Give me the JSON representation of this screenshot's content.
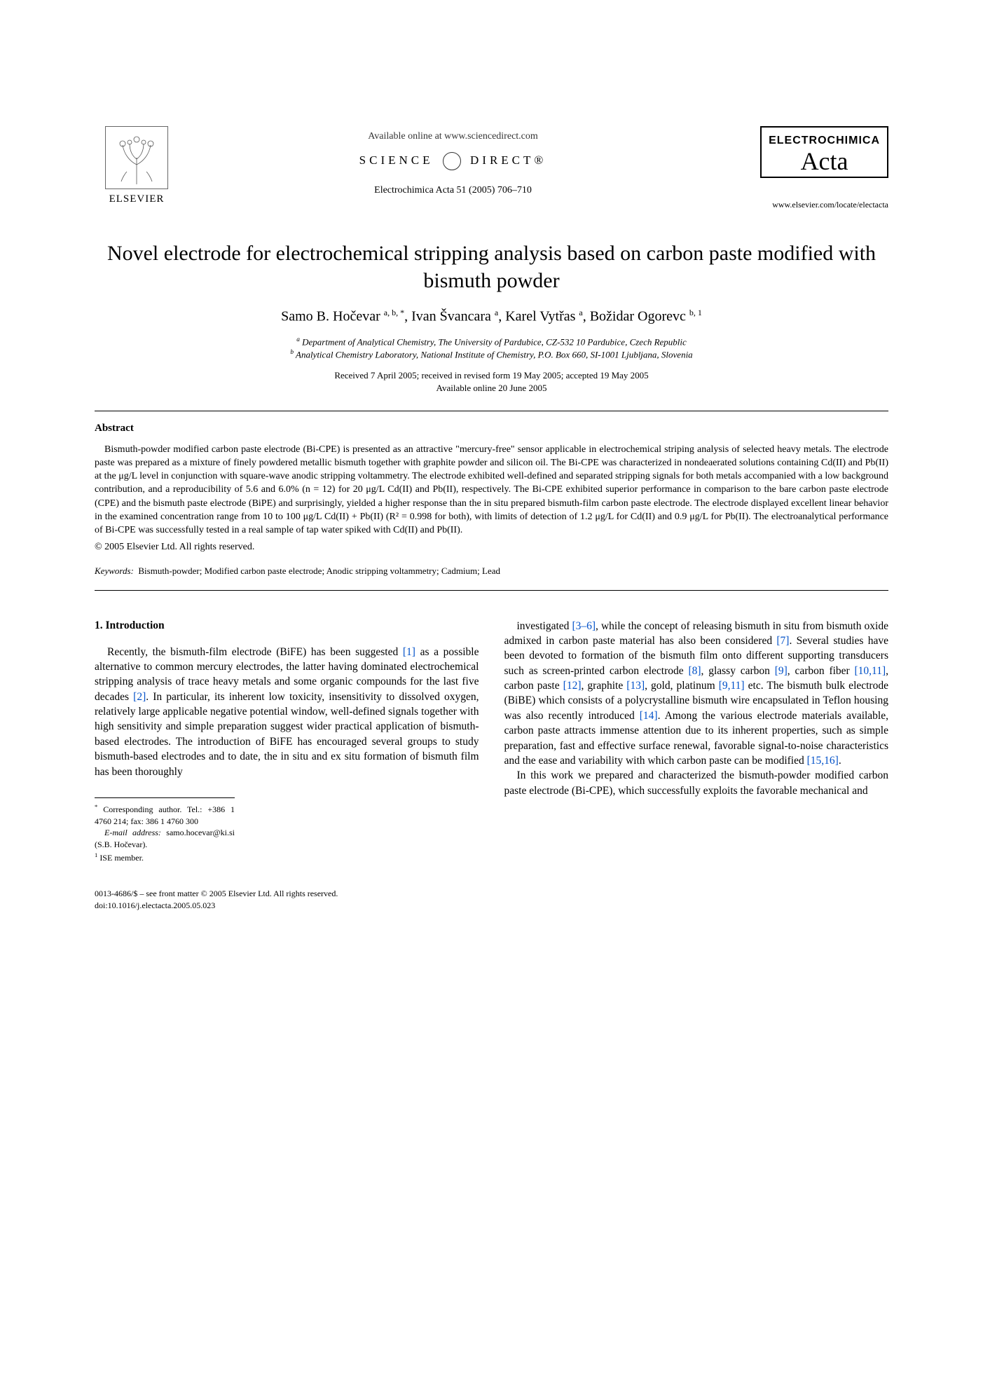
{
  "header": {
    "publisher": "ELSEVIER",
    "available_online": "Available online at www.sciencedirect.com",
    "sciencedirect_left": "SCIENCE",
    "sciencedirect_right": "DIRECT®",
    "journal_reference": "Electrochimica Acta 51 (2005) 706–710",
    "brand_top": "ELECTROCHIMICA",
    "brand_script": "Acta",
    "brand_url": "www.elsevier.com/locate/electacta"
  },
  "title": "Novel electrode for electrochemical stripping analysis based on carbon paste modified with bismuth powder",
  "authors_html": "Samo B. Hočevar <sup>a, b, *</sup>, Ivan Švancara <sup>a</sup>, Karel Vytřas <sup>a</sup>, Božidar Ogorevc <sup>b, 1</sup>",
  "affiliations": {
    "a": "Department of Analytical Chemistry, The University of Pardubice, CZ-532 10 Pardubice, Czech Republic",
    "b": "Analytical Chemistry Laboratory, National Institute of Chemistry, P.O. Box 660, SI-1001 Ljubljana, Slovenia"
  },
  "dates_line1": "Received 7 April 2005; received in revised form 19 May 2005; accepted 19 May 2005",
  "dates_line2": "Available online 20 June 2005",
  "abstract_heading": "Abstract",
  "abstract_body": "Bismuth-powder modified carbon paste electrode (Bi-CPE) is presented as an attractive \"mercury-free\" sensor applicable in electrochemical striping analysis of selected heavy metals. The electrode paste was prepared as a mixture of finely powdered metallic bismuth together with graphite powder and silicon oil. The Bi-CPE was characterized in nondeaerated solutions containing Cd(II) and Pb(II) at the μg/L level in conjunction with square-wave anodic stripping voltammetry. The electrode exhibited well-defined and separated stripping signals for both metals accompanied with a low background contribution, and a reproducibility of 5.6 and 6.0% (n = 12) for 20 μg/L Cd(II) and Pb(II), respectively. The Bi-CPE exhibited superior performance in comparison to the bare carbon paste electrode (CPE) and the bismuth paste electrode (BiPE) and surprisingly, yielded a higher response than the in situ prepared bismuth-film carbon paste electrode. The electrode displayed excellent linear behavior in the examined concentration range from 10 to 100 μg/L Cd(II) + Pb(II) (R² = 0.998 for both), with limits of detection of 1.2 μg/L for Cd(II) and 0.9 μg/L for Pb(II). The electroanalytical performance of Bi-CPE was successfully tested in a real sample of tap water spiked with Cd(II) and Pb(II).",
  "copyright": "© 2005 Elsevier Ltd. All rights reserved.",
  "keywords_label": "Keywords:",
  "keywords": "Bismuth-powder; Modified carbon paste electrode; Anodic stripping voltammetry; Cadmium; Lead",
  "intro_heading": "1. Introduction",
  "col_left": "Recently, the bismuth-film electrode (BiFE) has been suggested [1] as a possible alternative to common mercury electrodes, the latter having dominated electrochemical stripping analysis of trace heavy metals and some organic compounds for the last five decades [2]. In particular, its inherent low toxicity, insensitivity to dissolved oxygen, relatively large applicable negative potential window, well-defined signals together with high sensitivity and simple preparation suggest wider practical application of bismuth-based electrodes. The introduction of BiFE has encouraged several groups to study bismuth-based electrodes and to date, the in situ and ex situ formation of bismuth film has been thoroughly",
  "col_right_p1": "investigated [3–6], while the concept of releasing bismuth in situ from bismuth oxide admixed in carbon paste material has also been considered [7]. Several studies have been devoted to formation of the bismuth film onto different supporting transducers such as screen-printed carbon electrode [8], glassy carbon [9], carbon fiber [10,11], carbon paste [12], graphite [13], gold, platinum [9,11] etc. The bismuth bulk electrode (BiBE) which consists of a polycrystalline bismuth wire encapsulated in Teflon housing was also recently introduced [14]. Among the various electrode materials available, carbon paste attracts immense attention due to its inherent properties, such as simple preparation, fast and effective surface renewal, favorable signal-to-noise characteristics and the ease and variability with which carbon paste can be modified [15,16].",
  "col_right_p2": "In this work we prepared and characterized the bismuth-powder modified carbon paste electrode (Bi-CPE), which successfully exploits the favorable mechanical and",
  "footnotes": {
    "corresponding": "Corresponding author. Tel.: +386 1 4760 214; fax: 386 1 4760 300",
    "email_label": "E-mail address:",
    "email": "samo.hocevar@ki.si (S.B. Hočevar).",
    "ise": "ISE member."
  },
  "bottom": {
    "issn": "0013-4686/$ – see front matter © 2005 Elsevier Ltd. All rights reserved.",
    "doi": "doi:10.1016/j.electacta.2005.05.023"
  },
  "reflinks": {
    "r1": "[1]",
    "r2": "[2]",
    "r36": "[3–6]",
    "r7": "[7]",
    "r8": "[8]",
    "r9": "[9]",
    "r1011": "[10,11]",
    "r12": "[12]",
    "r13": "[13]",
    "r911": "[9,11]",
    "r14": "[14]",
    "r1516": "[15,16]"
  },
  "colors": {
    "link": "#0050c8",
    "text": "#000000",
    "bg": "#ffffff"
  }
}
